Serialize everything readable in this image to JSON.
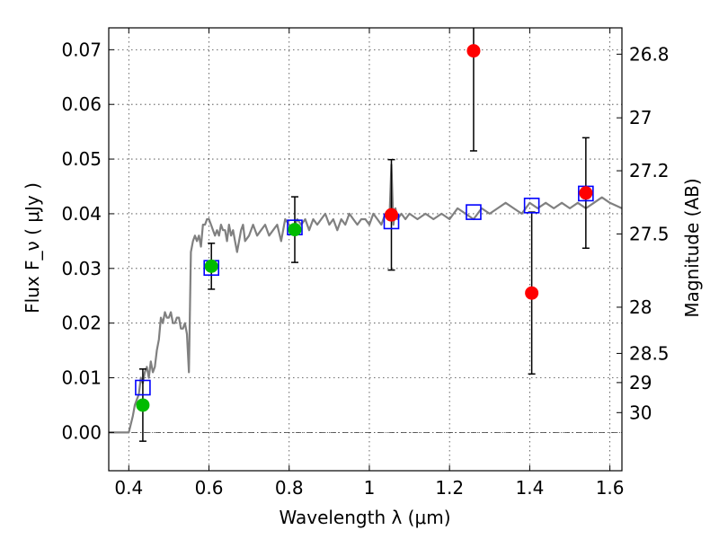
{
  "chart_data": {
    "type": "scatter",
    "xlabel": "Wavelength  λ (μm)",
    "ylabel": "Flux  F_ν  ( μJy )",
    "y2label": "Magnitude (AB)",
    "xlim": [
      0.35,
      1.63
    ],
    "ylim": [
      -0.007,
      0.074
    ],
    "x_ticks": [
      0.4,
      0.6,
      0.8,
      1.0,
      1.2,
      1.4,
      1.6
    ],
    "x_tick_labels": [
      "0.4",
      "0.6",
      "0.8",
      "1",
      "1.2",
      "1.4",
      "1.6"
    ],
    "y_ticks": [
      0.0,
      0.01,
      0.02,
      0.03,
      0.04,
      0.05,
      0.06,
      0.07
    ],
    "y_tick_labels": [
      "0.00",
      "0.01",
      "0.02",
      "0.03",
      "0.04",
      "0.05",
      "0.06",
      "0.07"
    ],
    "y2_ticks": [
      26.8,
      27.0,
      27.2,
      27.5,
      28.0,
      28.5,
      29.0,
      30.0
    ],
    "y2_tick_labels": [
      "26.8",
      "27",
      "27.2",
      "27.5",
      "28",
      "28.5",
      "29",
      "30"
    ],
    "grid": true,
    "series": [
      {
        "kind": "line",
        "color": "#808080",
        "x": [
          0.35,
          0.4,
          0.41,
          0.415,
          0.42,
          0.425,
          0.43,
          0.435,
          0.44,
          0.445,
          0.45,
          0.455,
          0.46,
          0.465,
          0.47,
          0.475,
          0.48,
          0.485,
          0.49,
          0.495,
          0.5,
          0.505,
          0.51,
          0.515,
          0.52,
          0.525,
          0.53,
          0.535,
          0.54,
          0.545,
          0.55,
          0.555,
          0.56,
          0.565,
          0.57,
          0.575,
          0.58,
          0.585,
          0.59,
          0.595,
          0.6,
          0.605,
          0.61,
          0.615,
          0.62,
          0.625,
          0.63,
          0.635,
          0.64,
          0.645,
          0.65,
          0.655,
          0.66,
          0.665,
          0.67,
          0.675,
          0.68,
          0.685,
          0.69,
          0.7,
          0.71,
          0.72,
          0.73,
          0.74,
          0.75,
          0.76,
          0.77,
          0.78,
          0.79,
          0.8,
          0.81,
          0.82,
          0.83,
          0.84,
          0.85,
          0.86,
          0.87,
          0.88,
          0.89,
          0.9,
          0.91,
          0.92,
          0.93,
          0.94,
          0.95,
          0.96,
          0.97,
          0.98,
          0.99,
          1.0,
          1.01,
          1.02,
          1.03,
          1.04,
          1.05,
          1.055,
          1.06,
          1.065,
          1.07,
          1.08,
          1.09,
          1.1,
          1.12,
          1.14,
          1.16,
          1.18,
          1.2,
          1.22,
          1.24,
          1.26,
          1.28,
          1.3,
          1.32,
          1.34,
          1.36,
          1.38,
          1.4,
          1.42,
          1.44,
          1.46,
          1.48,
          1.5,
          1.52,
          1.54,
          1.56,
          1.58,
          1.6,
          1.63
        ],
        "y": [
          0.0,
          0.0,
          0.003,
          0.005,
          0.006,
          0.007,
          0.01,
          0.009,
          0.011,
          0.012,
          0.01,
          0.013,
          0.011,
          0.012,
          0.015,
          0.017,
          0.021,
          0.02,
          0.022,
          0.021,
          0.021,
          0.022,
          0.02,
          0.02,
          0.021,
          0.021,
          0.019,
          0.019,
          0.02,
          0.018,
          0.011,
          0.033,
          0.035,
          0.036,
          0.035,
          0.036,
          0.034,
          0.038,
          0.038,
          0.039,
          0.039,
          0.038,
          0.037,
          0.036,
          0.037,
          0.036,
          0.038,
          0.037,
          0.037,
          0.035,
          0.038,
          0.036,
          0.037,
          0.035,
          0.033,
          0.035,
          0.037,
          0.038,
          0.035,
          0.036,
          0.038,
          0.036,
          0.037,
          0.038,
          0.036,
          0.037,
          0.038,
          0.035,
          0.039,
          0.038,
          0.037,
          0.039,
          0.038,
          0.039,
          0.037,
          0.039,
          0.038,
          0.039,
          0.04,
          0.038,
          0.039,
          0.037,
          0.039,
          0.038,
          0.04,
          0.039,
          0.038,
          0.039,
          0.039,
          0.038,
          0.04,
          0.039,
          0.038,
          0.04,
          0.039,
          0.049,
          0.038,
          0.041,
          0.039,
          0.04,
          0.039,
          0.04,
          0.039,
          0.04,
          0.039,
          0.04,
          0.039,
          0.041,
          0.04,
          0.039,
          0.041,
          0.04,
          0.041,
          0.042,
          0.041,
          0.04,
          0.042,
          0.041,
          0.042,
          0.041,
          0.042,
          0.041,
          0.042,
          0.041,
          0.042,
          0.043,
          0.042,
          0.041
        ]
      },
      {
        "kind": "open-square",
        "color": "#0000ff",
        "x": [
          0.435,
          0.606,
          0.814,
          1.055,
          1.26,
          1.405,
          1.54
        ],
        "y": [
          0.0082,
          0.0301,
          0.0375,
          0.0386,
          0.0403,
          0.0415,
          0.0437
        ]
      },
      {
        "kind": "filled-circle",
        "color": "#00bb00",
        "x": [
          0.435,
          0.606,
          0.814
        ],
        "y": [
          0.005,
          0.0304,
          0.0371
        ],
        "err": [
          0.0066,
          0.0042,
          0.006
        ]
      },
      {
        "kind": "filled-circle",
        "color": "#ff0000",
        "x": [
          1.055,
          1.26,
          1.405,
          1.54
        ],
        "y": [
          0.0398,
          0.0698,
          0.0255,
          0.0438
        ],
        "err": [
          0.0101,
          0.0183,
          0.0148,
          0.0101
        ]
      }
    ]
  }
}
